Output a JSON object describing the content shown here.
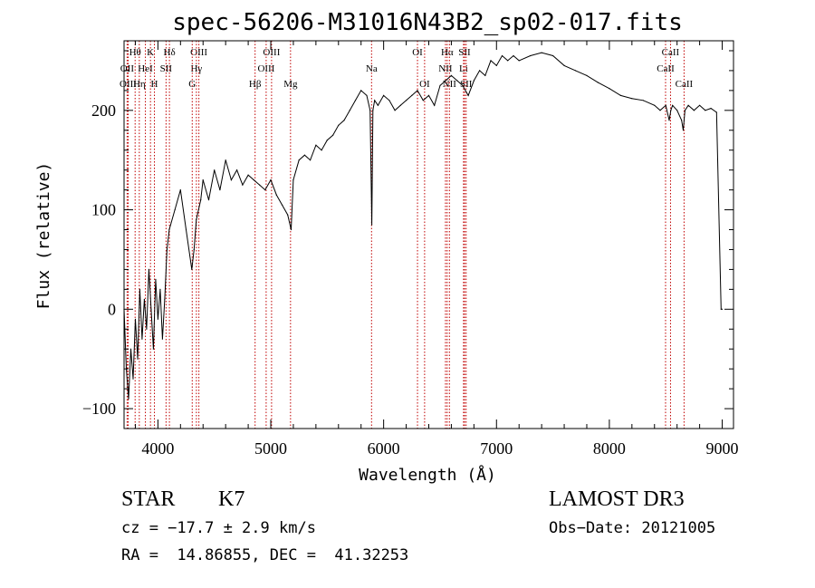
{
  "chart_data": {
    "type": "line",
    "title": "spec-56206-M31016N43B2_sp02-017.fits",
    "xlabel": "Wavelength (Å)",
    "ylabel": "Flux (relative)",
    "xlim": [
      3700,
      9100
    ],
    "ylim": [
      -120,
      270
    ],
    "xticks": [
      4000,
      5000,
      6000,
      7000,
      8000,
      9000
    ],
    "yticks": [
      -100,
      0,
      100,
      200
    ],
    "series": [
      {
        "name": "flux",
        "x": [
          3700,
          3720,
          3740,
          3760,
          3780,
          3800,
          3820,
          3840,
          3860,
          3880,
          3900,
          3920,
          3940,
          3960,
          3980,
          4000,
          4020,
          4040,
          4060,
          4080,
          4100,
          4150,
          4200,
          4250,
          4300,
          4320,
          4340,
          4380,
          4400,
          4450,
          4500,
          4550,
          4600,
          4650,
          4700,
          4750,
          4800,
          4850,
          4900,
          4950,
          5000,
          5050,
          5100,
          5150,
          5180,
          5200,
          5250,
          5300,
          5350,
          5400,
          5450,
          5500,
          5550,
          5600,
          5650,
          5700,
          5750,
          5800,
          5850,
          5880,
          5895,
          5905,
          5920,
          5950,
          6000,
          6050,
          6100,
          6150,
          6200,
          6250,
          6300,
          6350,
          6400,
          6450,
          6500,
          6550,
          6600,
          6650,
          6700,
          6750,
          6800,
          6850,
          6900,
          6950,
          7000,
          7050,
          7100,
          7150,
          7200,
          7300,
          7400,
          7500,
          7600,
          7700,
          7800,
          7900,
          8000,
          8100,
          8200,
          8300,
          8400,
          8450,
          8500,
          8530,
          8545,
          8560,
          8600,
          8640,
          8655,
          8670,
          8700,
          8750,
          8800,
          8850,
          8900,
          8950,
          8990,
          9000
        ],
        "y": [
          0,
          -60,
          -90,
          -40,
          -70,
          -10,
          -50,
          20,
          -30,
          10,
          -20,
          40,
          0,
          -40,
          30,
          -10,
          20,
          -30,
          10,
          60,
          80,
          100,
          120,
          80,
          40,
          60,
          90,
          110,
          130,
          110,
          140,
          120,
          150,
          130,
          140,
          125,
          135,
          130,
          125,
          120,
          130,
          115,
          105,
          95,
          80,
          130,
          150,
          155,
          150,
          165,
          160,
          170,
          175,
          185,
          190,
          200,
          210,
          220,
          215,
          200,
          85,
          200,
          210,
          205,
          215,
          210,
          200,
          205,
          210,
          215,
          220,
          210,
          215,
          205,
          225,
          230,
          235,
          230,
          225,
          215,
          230,
          240,
          235,
          250,
          245,
          255,
          250,
          255,
          250,
          255,
          258,
          255,
          245,
          240,
          235,
          228,
          222,
          215,
          212,
          210,
          205,
          200,
          205,
          190,
          200,
          205,
          200,
          190,
          180,
          200,
          205,
          200,
          205,
          200,
          202,
          198,
          0,
          0
        ]
      }
    ],
    "lines": [
      {
        "label": "Hθ",
        "x": 3798,
        "row": 1
      },
      {
        "label": "OII",
        "x": 3727,
        "row": 2
      },
      {
        "label": "OIII",
        "x": 3736,
        "row": 3
      },
      {
        "label": "Hη",
        "x": 3835,
        "row": 3
      },
      {
        "label": "HeI",
        "x": 3889,
        "row": 2
      },
      {
        "label": "K",
        "x": 3934,
        "row": 1
      },
      {
        "label": "H",
        "x": 3969,
        "row": 3
      },
      {
        "label": "SII",
        "x": 4072,
        "row": 2
      },
      {
        "label": "Hδ",
        "x": 4102,
        "row": 1
      },
      {
        "label": "OIII",
        "x": 4363,
        "row": 1
      },
      {
        "label": "Hγ",
        "x": 4341,
        "row": 2
      },
      {
        "label": "G",
        "x": 4304,
        "row": 3
      },
      {
        "label": "Hβ",
        "x": 4861,
        "row": 3
      },
      {
        "label": "OIII",
        "x": 5007,
        "row": 1
      },
      {
        "label": "OIII",
        "x": 4959,
        "row": 2
      },
      {
        "label": "Mg",
        "x": 5175,
        "row": 3
      },
      {
        "label": "Na",
        "x": 5893,
        "row": 2
      },
      {
        "label": "OI",
        "x": 6300,
        "row": 1
      },
      {
        "label": "OI",
        "x": 6363,
        "row": 3
      },
      {
        "label": "Hα",
        "x": 6563,
        "row": 1
      },
      {
        "label": "NII",
        "x": 6548,
        "row": 2
      },
      {
        "label": "NII",
        "x": 6583,
        "row": 3
      },
      {
        "label": "SII",
        "x": 6717,
        "row": 1
      },
      {
        "label": "Li",
        "x": 6708,
        "row": 2
      },
      {
        "label": "SII",
        "x": 6731,
        "row": 3
      },
      {
        "label": "CaII",
        "x": 8542,
        "row": 1
      },
      {
        "label": "CaII",
        "x": 8498,
        "row": 2
      },
      {
        "label": "CaII",
        "x": 8662,
        "row": 3
      }
    ]
  },
  "info": {
    "class": "STAR",
    "subclass": "K7",
    "survey": "LAMOST DR3",
    "cz": "cz = −17.7 ± 2.9 km/s",
    "obs_date": "Obs−Date: 20121005",
    "coords": "RA =  14.86855, DEC =  41.32253"
  },
  "colors": {
    "line_marker": "#c00000",
    "spectrum": "#000000"
  }
}
